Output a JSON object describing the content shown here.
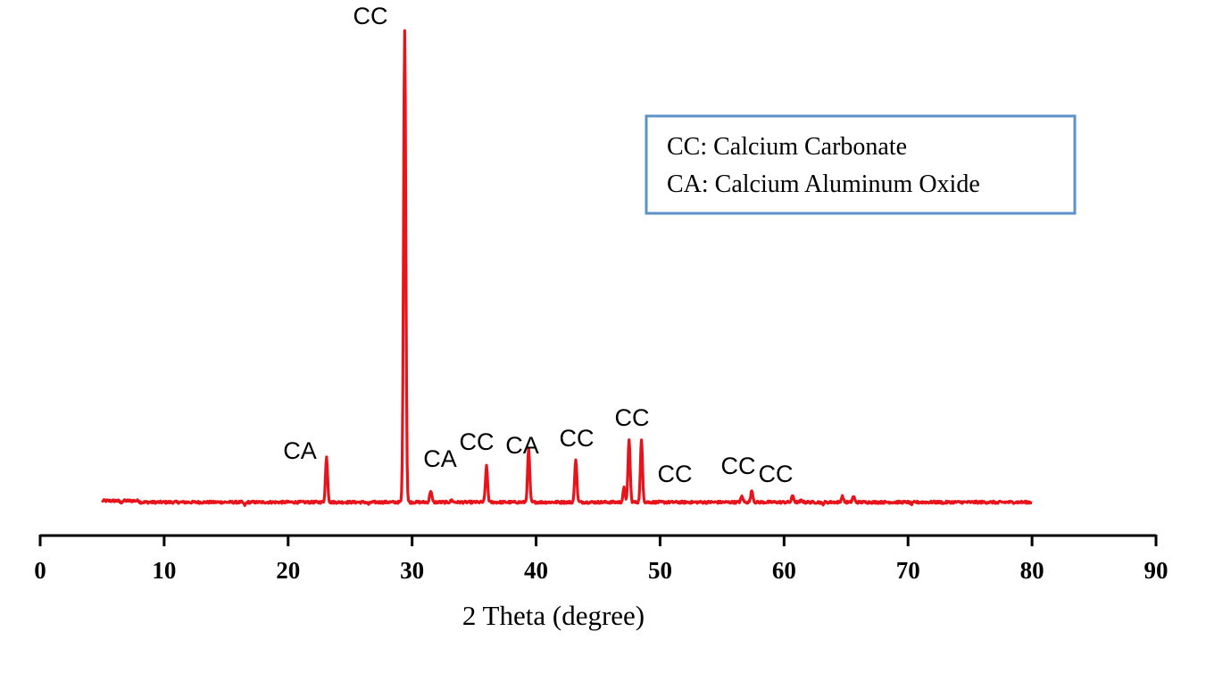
{
  "chart_data": {
    "type": "line",
    "xlabel": "2 Theta (degree)",
    "ylabel": "",
    "xlim": [
      0,
      90
    ],
    "ylim": [
      0,
      100
    ],
    "x_ticks": [
      0,
      10,
      20,
      30,
      40,
      50,
      60,
      70,
      80,
      90
    ],
    "x_tick_labels": [
      "0",
      "10",
      "20",
      "30",
      "40",
      "50",
      "60",
      "70",
      "80",
      "90"
    ],
    "y_axis_visible": false,
    "grid": false,
    "series": [
      {
        "color": "#e8141b",
        "x_range": [
          5,
          80
        ],
        "baseline": 1,
        "peaks": [
          {
            "x": 6.5,
            "y": 0.6
          },
          {
            "x": 16.5,
            "y": 0.4
          },
          {
            "x": 23.1,
            "y": 10.4
          },
          {
            "x": 26.5,
            "y": 0.6
          },
          {
            "x": 29.4,
            "y": 100
          },
          {
            "x": 31.5,
            "y": 3.4
          },
          {
            "x": 33.2,
            "y": 1.4
          },
          {
            "x": 36.0,
            "y": 8.5
          },
          {
            "x": 39.4,
            "y": 12.2
          },
          {
            "x": 43.2,
            "y": 10.1
          },
          {
            "x": 47.1,
            "y": 4.0
          },
          {
            "x": 47.5,
            "y": 14.2
          },
          {
            "x": 48.5,
            "y": 14.0
          },
          {
            "x": 56.6,
            "y": 2.2
          },
          {
            "x": 57.4,
            "y": 3.4
          },
          {
            "x": 60.7,
            "y": 2.4
          },
          {
            "x": 61.4,
            "y": 1.4
          },
          {
            "x": 63.1,
            "y": 0.6
          },
          {
            "x": 64.7,
            "y": 2.2
          },
          {
            "x": 65.6,
            "y": 2.2
          },
          {
            "x": 70.3,
            "y": 0.6
          },
          {
            "x": 72.9,
            "y": 0.8
          },
          {
            "x": 77.2,
            "y": 0.8
          }
        ]
      }
    ],
    "annotations": [
      {
        "text": "CC",
        "x": 29.4,
        "y": 100
      },
      {
        "text": "CA",
        "x": 23.1,
        "y": 10.4
      },
      {
        "text": "CA",
        "x": 31.5,
        "y": 3.4
      },
      {
        "text": "CC",
        "x": 36.0,
        "y": 8.5
      },
      {
        "text": "CA",
        "x": 39.4,
        "y": 12.2
      },
      {
        "text": "CC",
        "x": 43.2,
        "y": 10.1
      },
      {
        "text": "CC",
        "x": 48.0,
        "y": 14.2
      },
      {
        "text": "CC",
        "x": 50.0,
        "y": 4.0
      },
      {
        "text": "CC",
        "x": 56.6,
        "y": 2.2
      },
      {
        "text": "CC",
        "x": 59.3,
        "y": 3.4
      }
    ],
    "legend": {
      "position": "top-right",
      "border_color": "#5b93c8",
      "entries": [
        "CC: Calcium Carbonate",
        "CA: Calcium Aluminum Oxide"
      ]
    }
  }
}
